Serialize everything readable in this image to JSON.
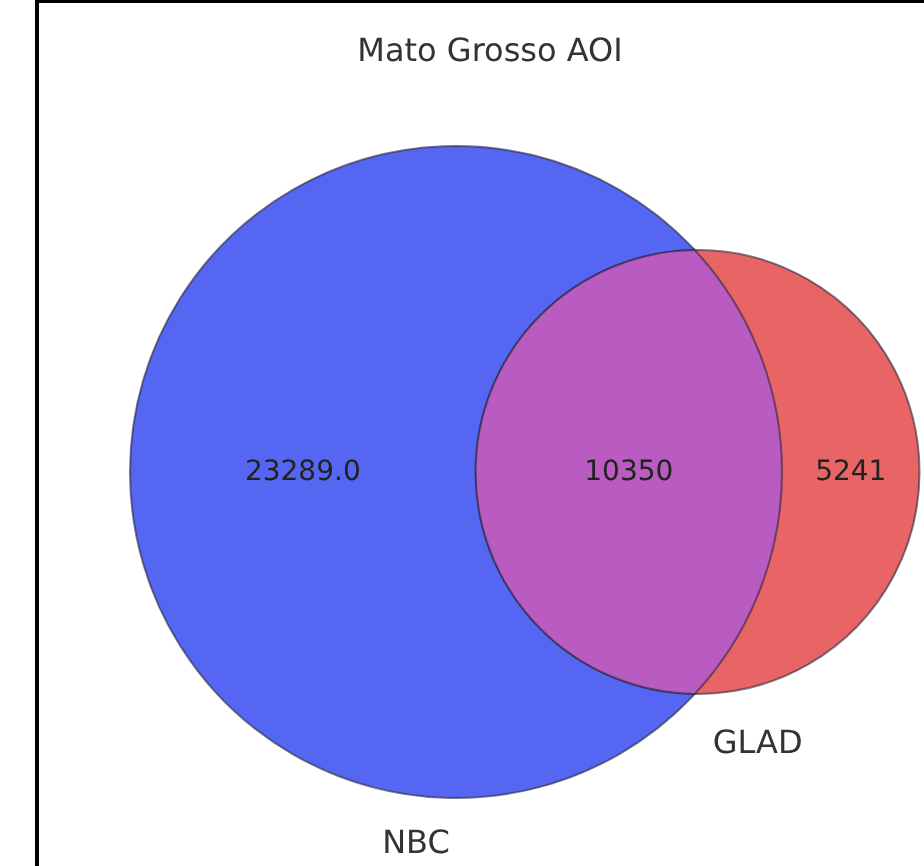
{
  "chart_data": {
    "type": "other",
    "title": "Mato Grosso AOI",
    "categories": [
      "NBC",
      null,
      "GLAD"
    ],
    "values": [
      23289,
      10350,
      5241
    ],
    "value_labels": [
      "23289.0",
      "10350",
      "5241"
    ],
    "colors": [
      "#5567f2",
      "#b95bc0",
      "#e96565"
    ]
  }
}
